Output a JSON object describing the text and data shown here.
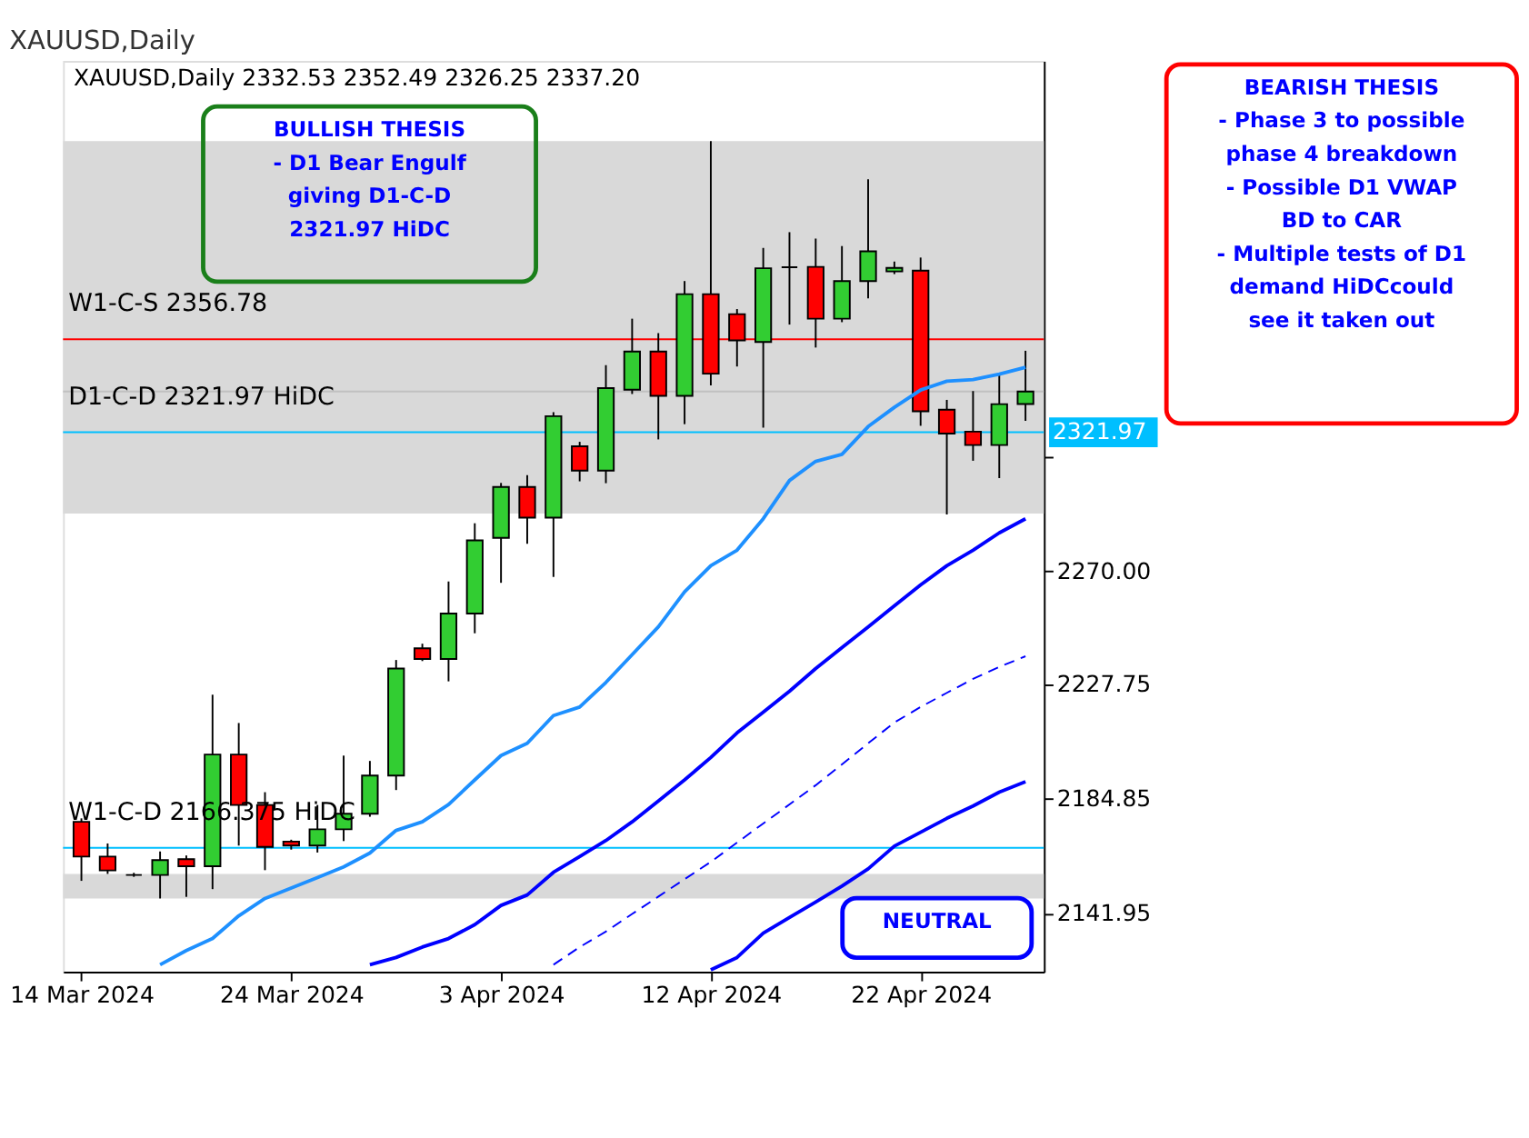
{
  "chart_data": {
    "type": "candlestick",
    "title": "XAUUSD,Daily",
    "subtitle": "XAUUSD,Daily  2332.53 2352.49 2326.25 2337.20",
    "categories": [
      "14 Mar 2024",
      null,
      null,
      null,
      null,
      null,
      null,
      null,
      "24 Mar 2024",
      null,
      null,
      null,
      null,
      null,
      null,
      null,
      "3 Apr 2024",
      null,
      null,
      null,
      null,
      null,
      null,
      null,
      "12 Apr 2024",
      null,
      null,
      null,
      null,
      null,
      null,
      null,
      "22 Apr 2024",
      null,
      null,
      null,
      null
    ],
    "ohlc": [
      [
        2176.1,
        2177.4,
        2154.0,
        2163.1
      ],
      [
        2163.1,
        2168.0,
        2156.6,
        2157.9
      ],
      [
        2156.2,
        2157.0,
        2155.5,
        2156.2
      ],
      [
        2156.2,
        2165.0,
        2147.4,
        2161.8
      ],
      [
        2162.1,
        2163.5,
        2148.0,
        2159.5
      ],
      [
        2159.5,
        2223.7,
        2150.9,
        2201.3
      ],
      [
        2201.3,
        2213.1,
        2167.2,
        2182.4
      ],
      [
        2182.4,
        2187.2,
        2158.0,
        2166.7
      ],
      [
        2168.7,
        2169.4,
        2165.7,
        2167.2
      ],
      [
        2167.2,
        2182.4,
        2164.6,
        2173.3
      ],
      [
        2173.3,
        2200.9,
        2168.9,
        2179.1
      ],
      [
        2179.1,
        2198.9,
        2178.0,
        2193.4
      ],
      [
        2193.4,
        2236.7,
        2188.0,
        2233.5
      ],
      [
        2241.1,
        2242.8,
        2236.3,
        2237.1
      ],
      [
        2237.1,
        2266.1,
        2228.7,
        2254.1
      ],
      [
        2254.1,
        2287.9,
        2246.7,
        2281.5
      ],
      [
        2282.4,
        2303.0,
        2265.6,
        2301.5
      ],
      [
        2301.5,
        2305.9,
        2280.2,
        2290.0
      ],
      [
        2290.0,
        2329.5,
        2267.8,
        2328.0
      ],
      [
        2316.7,
        2318.4,
        2303.6,
        2307.6
      ],
      [
        2307.6,
        2347.1,
        2302.9,
        2338.5
      ],
      [
        2337.9,
        2364.5,
        2336.3,
        2352.2
      ],
      [
        2352.2,
        2359.1,
        2319.3,
        2335.6
      ],
      [
        2335.6,
        2378.6,
        2325.0,
        2373.7
      ],
      [
        2373.7,
        2431.0,
        2339.5,
        2343.9
      ],
      [
        2366.2,
        2368.1,
        2346.6,
        2356.4
      ],
      [
        2355.8,
        2391.0,
        2323.7,
        2383.4
      ],
      [
        2383.8,
        2396.9,
        2362.3,
        2383.8
      ],
      [
        2383.9,
        2394.5,
        2353.7,
        2364.5
      ],
      [
        2364.5,
        2391.7,
        2363.2,
        2378.6
      ],
      [
        2378.6,
        2416.7,
        2372.1,
        2389.7
      ],
      [
        2382.2,
        2385.9,
        2381.2,
        2383.5
      ],
      [
        2382.5,
        2387.4,
        2324.4,
        2329.8
      ],
      [
        2330.4,
        2334.1,
        2291.2,
        2321.5
      ],
      [
        2322.2,
        2337.4,
        2311.3,
        2317.2
      ],
      [
        2317.2,
        2344.3,
        2304.8,
        2332.5
      ],
      [
        2332.53,
        2352.49,
        2326.25,
        2337.2
      ]
    ],
    "colors": [
      "#ff0000",
      "#ff0000",
      "#000000",
      "#32cd32",
      "#ff0000",
      "#32cd32",
      "#ff0000",
      "#ff0000",
      "#ff0000",
      "#32cd32",
      "#32cd32",
      "#32cd32",
      "#32cd32",
      "#ff0000",
      "#32cd32",
      "#32cd32",
      "#32cd32",
      "#ff0000",
      "#32cd32",
      "#ff0000",
      "#32cd32",
      "#32cd32",
      "#ff0000",
      "#32cd32",
      "#ff0000",
      "#ff0000",
      "#32cd32",
      "#000000",
      "#ff0000",
      "#32cd32",
      "#32cd32",
      "#32cd32",
      "#ff0000",
      "#ff0000",
      "#ff0000",
      "#32cd32",
      "#32cd32"
    ],
    "series": [
      {
        "type": "line",
        "color": "#1e90ff",
        "line_style": "solid",
        "values": [
          null,
          null,
          null,
          2122.6,
          2127.9,
          2132.4,
          2140.9,
          2147.4,
          2151.3,
          2155.2,
          2159.2,
          2164.4,
          2172.9,
          2176.1,
          2182.6,
          2191.8,
          2200.9,
          2205.5,
          2215.9,
          2219.1,
          2228.3,
          2238.7,
          2249.1,
          2262.2,
          2272.0,
          2277.8,
          2289.6,
          2303.9,
          2311.1,
          2313.7,
          2324.1,
          2331.3,
          2337.8,
          2341.1,
          2341.7,
          2343.7,
          2346.3
        ]
      },
      {
        "type": "line",
        "color": "#0000ff",
        "line_style": "solid",
        "values": [
          null,
          null,
          null,
          null,
          null,
          null,
          null,
          null,
          null,
          null,
          null,
          2122.6,
          2125.3,
          2129.2,
          2132.4,
          2137.6,
          2144.8,
          2148.7,
          2157.2,
          2163.1,
          2169.1,
          2176.1,
          2183.9,
          2191.8,
          2200.2,
          2209.4,
          2217.2,
          2225.0,
          2233.5,
          2241.3,
          2249.1,
          2257.0,
          2264.8,
          2272.0,
          2277.8,
          2284.3,
          2289.6
        ]
      },
      {
        "type": "line",
        "color": "#0000ff",
        "line_style": "dashed",
        "values": [
          null,
          null,
          null,
          null,
          null,
          null,
          null,
          null,
          null,
          null,
          null,
          null,
          null,
          null,
          null,
          null,
          null,
          null,
          2122.6,
          2129.2,
          2135.0,
          2141.6,
          2148.1,
          2154.6,
          2161.1,
          2168.3,
          2175.5,
          2182.6,
          2189.8,
          2197.6,
          2205.5,
          2213.3,
          2219.1,
          2224.4,
          2229.6,
          2234.1,
          2238.1
        ]
      },
      {
        "type": "line",
        "color": "#0000ff",
        "line_style": "solid",
        "values": [
          null,
          null,
          null,
          null,
          null,
          null,
          null,
          null,
          null,
          null,
          null,
          null,
          null,
          null,
          null,
          null,
          null,
          null,
          null,
          null,
          null,
          null,
          null,
          null,
          2120.7,
          2125.3,
          2134.4,
          2140.3,
          2146.1,
          2152.0,
          2158.5,
          2167.0,
          2172.2,
          2177.4,
          2182.0,
          2187.2,
          2191.1
        ]
      }
    ],
    "ylim": [
      2120,
      2461
    ],
    "yticks": [
      {
        "value": 2141.95,
        "label": "2141.95"
      },
      {
        "value": 2184.85,
        "label": "2184.85"
      },
      {
        "value": 2227.75,
        "label": "2227.75"
      },
      {
        "value": 2270.0,
        "label": "2270.00"
      },
      {
        "value": 2312.9,
        "label": null
      }
    ],
    "ref_lines": [
      {
        "axis": "y",
        "value": 2356.78,
        "label": "W1-C-S 2356.78",
        "color": "#ff0000"
      },
      {
        "axis": "y",
        "value": 2337.2,
        "color": "#c0c0c0"
      },
      {
        "axis": "y",
        "value": 2321.97,
        "label": "D1-C-D 2321.97 HiDC",
        "color": "#00bfff"
      },
      {
        "axis": "y",
        "value": 2166.375,
        "label": "W1-C-D 2166.375 HiDC",
        "color": "#00bfff"
      }
    ],
    "bands": [
      {
        "axis": "y",
        "from": 2291.5,
        "to": 2431.0,
        "color": "#d9d9d9"
      },
      {
        "axis": "y",
        "from": 2147.4,
        "to": 2156.6,
        "color": "#d9d9d9"
      }
    ],
    "annotations": [
      "BULLISH THESIS\n\n- D1 Bear Engulf\ngiving D1-C-D\n2321.97 HiDC",
      "BEARISH THESIS\n\n- Phase 3 to possible\nphase 4 breakdown\n- Possible D1 VWAP\nBD to CAR\n- Multiple tests of D1\ndemand HiDCcould\nsee it taken out",
      "NEUTRAL",
      "2321.97"
    ],
    "grid": false
  }
}
